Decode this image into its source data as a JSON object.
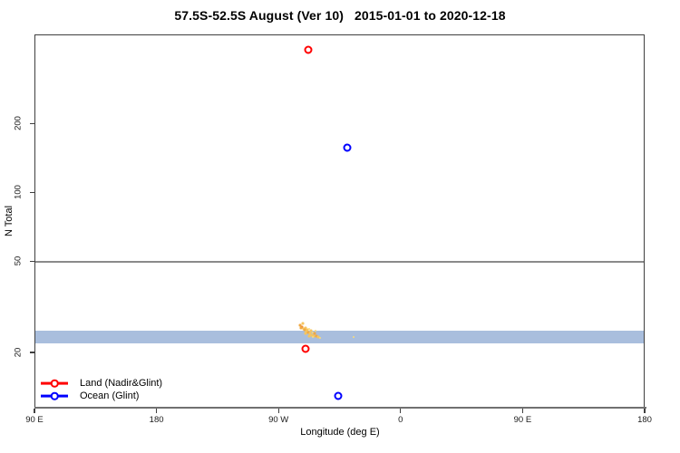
{
  "title": "57.5S-52.5S August (Ver 10)   2015-01-01 to 2020-12-18",
  "axes": {
    "x_label": "Longitude (deg E)",
    "y_label": "N Total",
    "y_scale": "log",
    "x_ticks": [
      {
        "label": "90 E",
        "lon": 90
      },
      {
        "label": "180",
        "lon": 180
      },
      {
        "label": "90 W",
        "lon": 270
      },
      {
        "label": "0",
        "lon": 360
      },
      {
        "label": "90 E",
        "lon": 450
      },
      {
        "label": "180",
        "lon": 540
      }
    ],
    "y_ticks": [
      {
        "label": "20",
        "n": 20
      },
      {
        "label": "50",
        "n": 50
      },
      {
        "label": "100",
        "n": 100
      },
      {
        "label": "200",
        "n": 200
      }
    ]
  },
  "legend": {
    "items": [
      {
        "label": "Land (Nadir&Glint)",
        "color": "#ff0000"
      },
      {
        "label": "Ocean (Glint)",
        "color": "#0000ff"
      }
    ]
  },
  "colors": {
    "land": "#ff0000",
    "ocean": "#0000ff",
    "band": "#a9bedd",
    "refline": "#8a8a8a",
    "axis": "#3f3f3f",
    "baseline": "#707070",
    "cluster_palette": [
      "#f6c55e",
      "#f0a843",
      "#fbdc78",
      "#ed8a33"
    ]
  },
  "chart_data": {
    "type": "scatter",
    "title": "57.5S-52.5S August (Ver 10)   2015-01-01 to 2020-12-18",
    "xlabel": "Longitude (deg E)",
    "ylabel": "N Total",
    "y_scale": "log",
    "ylim": [
      11,
      490
    ],
    "x_axis_span_deg_e": [
      90,
      540
    ],
    "x_tick_labels": [
      "90 E",
      "180",
      "90 W",
      "0",
      "90 E",
      "180"
    ],
    "y_tick_values": [
      20,
      50,
      100,
      200
    ],
    "legend_position": "bottom-left",
    "grid": false,
    "series": [
      {
        "name": "Land (Nadir&Glint)",
        "color": "#ff0000",
        "marker": "open-circle",
        "points": [
          {
            "lon_label": "69 W",
            "lon": 291.0,
            "n_total": 425
          },
          {
            "lon_label": "71 W",
            "lon": 289.0,
            "n_total": 21
          }
        ]
      },
      {
        "name": "Ocean (Glint)",
        "color": "#0000ff",
        "marker": "open-circle",
        "points": [
          {
            "lon_label": "40 W",
            "lon": 320.0,
            "n_total": 158
          },
          {
            "lon_label": "47 W",
            "lon": 313.5,
            "n_total": 13
          }
        ]
      }
    ],
    "annotations": {
      "hline": {
        "n_total": 50,
        "color": "#8a8a8a"
      },
      "hband": {
        "n_from": 22.2,
        "n_to": 25.1,
        "color": "#a9bedd"
      },
      "cluster_points": [
        [
          285.2,
          26.6,
          1
        ],
        [
          287.2,
          27.0,
          0
        ],
        [
          286.5,
          26.1,
          3
        ],
        [
          285.9,
          25.9,
          1
        ],
        [
          287.9,
          25.7,
          0
        ],
        [
          289.2,
          25.9,
          0
        ],
        [
          288.6,
          25.4,
          1
        ],
        [
          290.6,
          25.4,
          0
        ],
        [
          291.9,
          25.7,
          2
        ],
        [
          289.9,
          24.9,
          0
        ],
        [
          291.3,
          24.6,
          1
        ],
        [
          293.3,
          25.1,
          0
        ],
        [
          292.6,
          24.4,
          0
        ],
        [
          294.6,
          24.6,
          2
        ],
        [
          294.0,
          24.1,
          0
        ],
        [
          296.0,
          24.4,
          1
        ],
        [
          296.6,
          25.1,
          2
        ],
        [
          295.3,
          23.9,
          0
        ],
        [
          297.3,
          23.9,
          1
        ],
        [
          289.2,
          24.4,
          0
        ],
        [
          291.9,
          23.9,
          0
        ],
        [
          294.6,
          23.6,
          2
        ],
        [
          298.6,
          23.6,
          0
        ],
        [
          300.0,
          23.4,
          2
        ],
        [
          324.7,
          23.6,
          2
        ]
      ]
    }
  }
}
